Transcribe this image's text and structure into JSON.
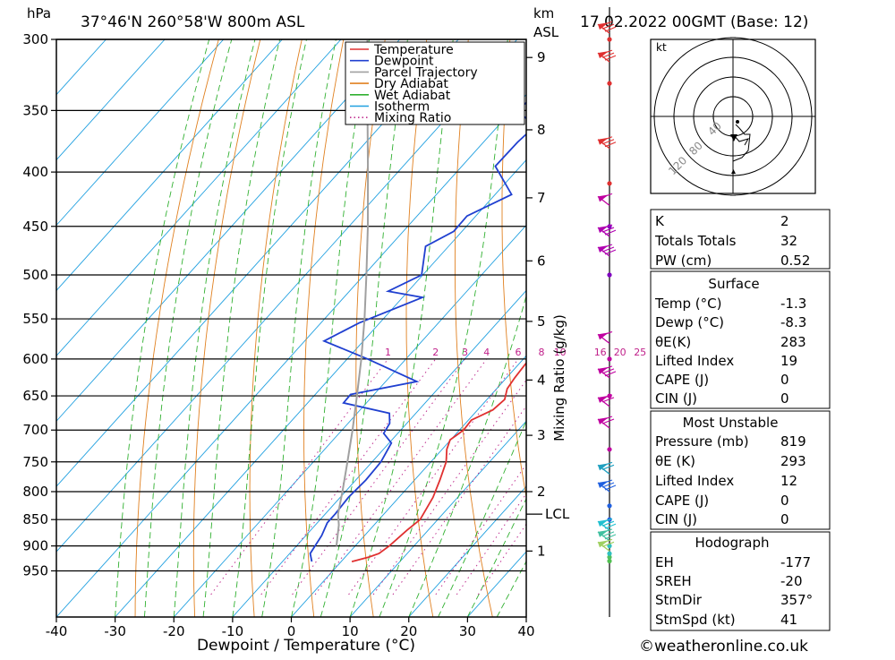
{
  "header": {
    "pressure_unit": "hPa",
    "location": "37°46'N  260°58'W  800m  ASL",
    "height_unit_top": "km",
    "height_unit_bottom": "ASL",
    "run": "17.02.2022  00GMT  (Base: 12)"
  },
  "chart_data": {
    "type": "skew-t log-p sounding",
    "xlabel": "Dewpoint / Temperature (°C)",
    "ylabel": "hPa",
    "x_ticks": [
      -40,
      -30,
      -20,
      -10,
      0,
      10,
      20,
      30,
      40
    ],
    "pressure_levels": [
      300,
      350,
      400,
      450,
      500,
      550,
      600,
      650,
      700,
      750,
      800,
      850,
      900,
      950
    ],
    "height_ticks_km": [
      {
        "label": "1",
        "p": 910
      },
      {
        "label": "2",
        "p": 800
      },
      {
        "label": "3",
        "p": 708
      },
      {
        "label": "4",
        "p": 628
      },
      {
        "label": "5",
        "p": 553
      },
      {
        "label": "6",
        "p": 485
      },
      {
        "label": "7",
        "p": 423
      },
      {
        "label": "8",
        "p": 365
      },
      {
        "label": "9",
        "p": 312
      }
    ],
    "lcl_label": "LCL",
    "lcl_pressure": 840,
    "mixing_ratio_axis_label": "Mixing Ratio (g/kg)",
    "mixing_ratio_values": [
      "1",
      "2",
      "3",
      "4",
      "6",
      "8",
      "10",
      "16",
      "20",
      "25"
    ],
    "hodograph_unit": "kt",
    "hodograph_ring_labels": [
      "40",
      "80",
      "120"
    ],
    "legend": [
      "Temperature",
      "Dewpoint",
      "Parcel Trajectory",
      "Dry Adiabat",
      "Wet Adiabat",
      "Isotherm",
      "Mixing Ratio"
    ],
    "series": [
      {
        "name": "Temperature",
        "color": "#e03030",
        "points": [
          [
            931,
            1.8
          ],
          [
            922,
            4.0
          ],
          [
            915,
            5.2
          ],
          [
            900,
            5.8
          ],
          [
            870,
            6.4
          ],
          [
            850,
            7.0
          ],
          [
            810,
            5.8
          ],
          [
            780,
            4.3
          ],
          [
            750,
            2.6
          ],
          [
            730,
            0.8
          ],
          [
            715,
            -0.1
          ],
          [
            700,
            0.7
          ],
          [
            685,
            0.5
          ],
          [
            670,
            2.6
          ],
          [
            655,
            3.0
          ],
          [
            640,
            1.8
          ],
          [
            625,
            1.4
          ],
          [
            600,
            1.0
          ],
          [
            580,
            0.7
          ],
          [
            555,
            -0.6
          ],
          [
            530,
            -2.2
          ],
          [
            515,
            -3.0
          ],
          [
            500,
            -3.0
          ],
          [
            475,
            -5.1
          ],
          [
            450,
            -7.6
          ],
          [
            420,
            -10.0
          ],
          [
            400,
            -11.2
          ],
          [
            375,
            -14.3
          ],
          [
            350,
            -16.1
          ],
          [
            335,
            -17.0
          ],
          [
            315,
            -19.5
          ],
          [
            300,
            -21.2
          ]
        ]
      },
      {
        "name": "Dewpoint",
        "color": "#2040d0",
        "points": [
          [
            931,
            -5.0
          ],
          [
            915,
            -6.5
          ],
          [
            880,
            -7.3
          ],
          [
            856,
            -8.3
          ],
          [
            840,
            -8.3
          ],
          [
            810,
            -8.6
          ],
          [
            780,
            -8.3
          ],
          [
            750,
            -8.5
          ],
          [
            720,
            -9.6
          ],
          [
            705,
            -12.4
          ],
          [
            690,
            -12.9
          ],
          [
            675,
            -14.5
          ],
          [
            660,
            -23.9
          ],
          [
            648,
            -24.0
          ],
          [
            630,
            -14.7
          ],
          [
            600,
            -26.5
          ],
          [
            577,
            -36.7
          ],
          [
            555,
            -33.5
          ],
          [
            525,
            -26.6
          ],
          [
            518,
            -33.4
          ],
          [
            500,
            -30.2
          ],
          [
            470,
            -33.9
          ],
          [
            455,
            -31.4
          ],
          [
            440,
            -31.5
          ],
          [
            420,
            -27.2
          ],
          [
            395,
            -34.3
          ],
          [
            375,
            -34.2
          ],
          [
            362,
            -33.7
          ],
          [
            350,
            -39.1
          ],
          [
            340,
            -38.5
          ],
          [
            325,
            -38.7
          ],
          [
            310,
            -37.2
          ],
          [
            300,
            -39.9
          ]
        ]
      },
      {
        "name": "Parcel Trajectory",
        "color": "#a0a0a0",
        "points": [
          [
            900,
            -3.2
          ],
          [
            860,
            -6.0
          ],
          [
            840,
            -7.8
          ],
          [
            800,
            -10.5
          ],
          [
            750,
            -14.2
          ],
          [
            700,
            -18.2
          ],
          [
            650,
            -22.7
          ],
          [
            600,
            -27.6
          ],
          [
            550,
            -33.2
          ],
          [
            500,
            -39.6
          ],
          [
            450,
            -46.8
          ],
          [
            400,
            -55.1
          ],
          [
            350,
            -64.6
          ],
          [
            300,
            -75.5
          ]
        ]
      }
    ]
  },
  "hodograph": {
    "storm_dir": "357°"
  },
  "indices": {
    "k_label": "K",
    "k": "2",
    "tt_label": "Totals Totals",
    "tt": "32",
    "pw_label": "PW (cm)",
    "pw": "0.52"
  },
  "surface": {
    "title": "Surface",
    "temp_label": "Temp (°C)",
    "temp": "-1.3",
    "dewp_label": "Dewp (°C)",
    "dewp": "-8.3",
    "theta_label": "θE(K)",
    "theta": "283",
    "li_label": "Lifted Index",
    "li": "19",
    "cape_label": "CAPE (J)",
    "cape": "0",
    "cin_label": "CIN (J)",
    "cin": "0"
  },
  "most_unstable": {
    "title": "Most Unstable",
    "pressure_label": "Pressure (mb)",
    "pressure": "819",
    "theta_label": "θE (K)",
    "theta": "293",
    "li_label": "Lifted Index",
    "li": "12",
    "cape_label": "CAPE (J)",
    "cape": "0",
    "cin_label": "CIN (J)",
    "cin": "0"
  },
  "hodograph_table": {
    "title": "Hodograph",
    "eh_label": "EH",
    "eh": "-177",
    "sreh_label": "SREH",
    "sreh": "-20",
    "stmdir_label": "StmDir",
    "stmdir": "357°",
    "stmspd_label": "StmSpd (kt)",
    "stmspd": "41"
  },
  "footer": {
    "credit": "©weatheronline.co.uk"
  }
}
